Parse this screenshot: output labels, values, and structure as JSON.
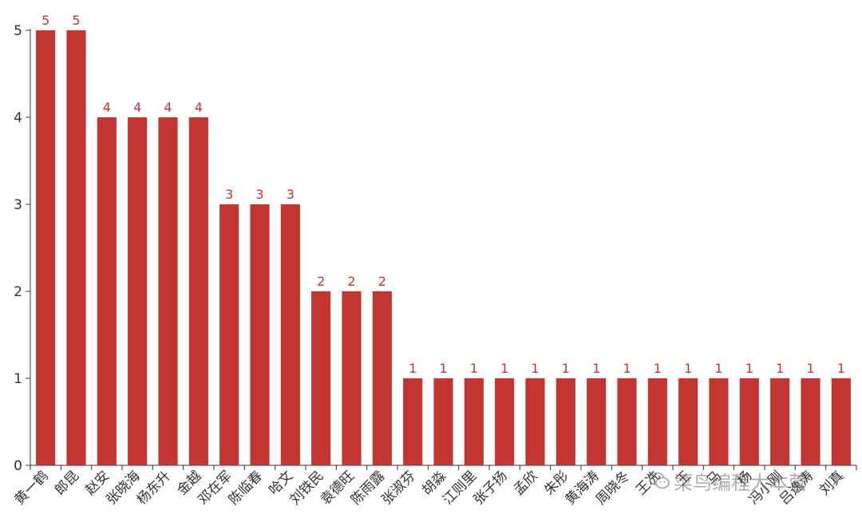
{
  "chart_data": {
    "type": "bar",
    "categories": [
      "黄一鹤",
      "郎昆",
      "赵安",
      "张晓海",
      "杨东升",
      "金越",
      "邓在军",
      "陈临春",
      "哈文",
      "刘铁民",
      "袁德旺",
      "陈雨露",
      "张淑芬",
      "胡淼",
      "江则里",
      "张子扬",
      "孟欣",
      "朱彤",
      "黄海涛",
      "周晓冬",
      "王冼",
      "王",
      "马",
      "杨",
      "冯小刚",
      "吕逸涛",
      "刘真"
    ],
    "values": [
      5,
      5,
      4,
      4,
      4,
      4,
      3,
      3,
      3,
      2,
      2,
      2,
      1,
      1,
      1,
      1,
      1,
      1,
      1,
      1,
      1,
      1,
      1,
      1,
      1,
      1,
      1
    ],
    "ylim": [
      0,
      5
    ],
    "yticks": [
      0,
      1,
      2,
      3,
      4,
      5
    ],
    "bar_color": "#c23531",
    "label_color": "#c23531",
    "grid": false
  },
  "watermark": {
    "text": "菜鸟编程大本营",
    "icon": "wechat-icon"
  }
}
